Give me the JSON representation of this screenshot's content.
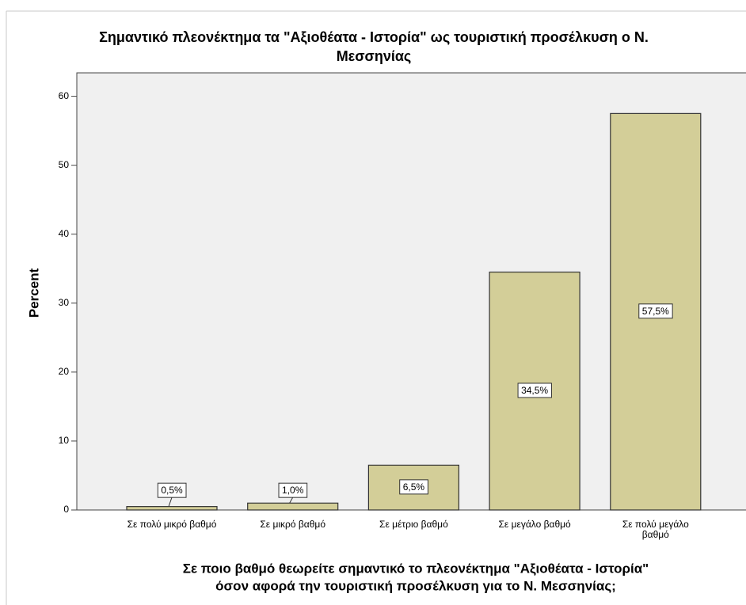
{
  "chart_data": {
    "type": "bar",
    "title": [
      "Σημαντικό πλεονέκτημα τα \"Αξιοθέατα - Ιστορία\" ως τουριστική προσέλκυση ο Ν.",
      "Μεσσηνίας"
    ],
    "xlabel": [
      "Σε ποιο βαθμό θεωρείτε σημαντικό το πλεονέκτημα \"Αξιοθέατα - Ιστορία\"",
      "όσον αφορά την τουριστική προσέλκυση για το Ν. Μεσσηνίας;"
    ],
    "ylabel": "Percent",
    "categories": [
      "Σε πολύ μικρό βαθμό",
      "Σε μικρό βαθμό",
      "Σε μέτριο βαθμό",
      "Σε μεγάλο βαθμό",
      "Σε πολύ μεγάλο βαθμό"
    ],
    "values": [
      0.5,
      1.0,
      6.5,
      34.5,
      57.5
    ],
    "value_labels": [
      "0,5%",
      "1,0%",
      "6,5%",
      "34,5%",
      "57,5%"
    ],
    "color": "#d3ce98",
    "ylim": [
      0,
      63.4
    ],
    "yticks": [
      0,
      10,
      20,
      30,
      40,
      50,
      60
    ],
    "grid": false
  }
}
